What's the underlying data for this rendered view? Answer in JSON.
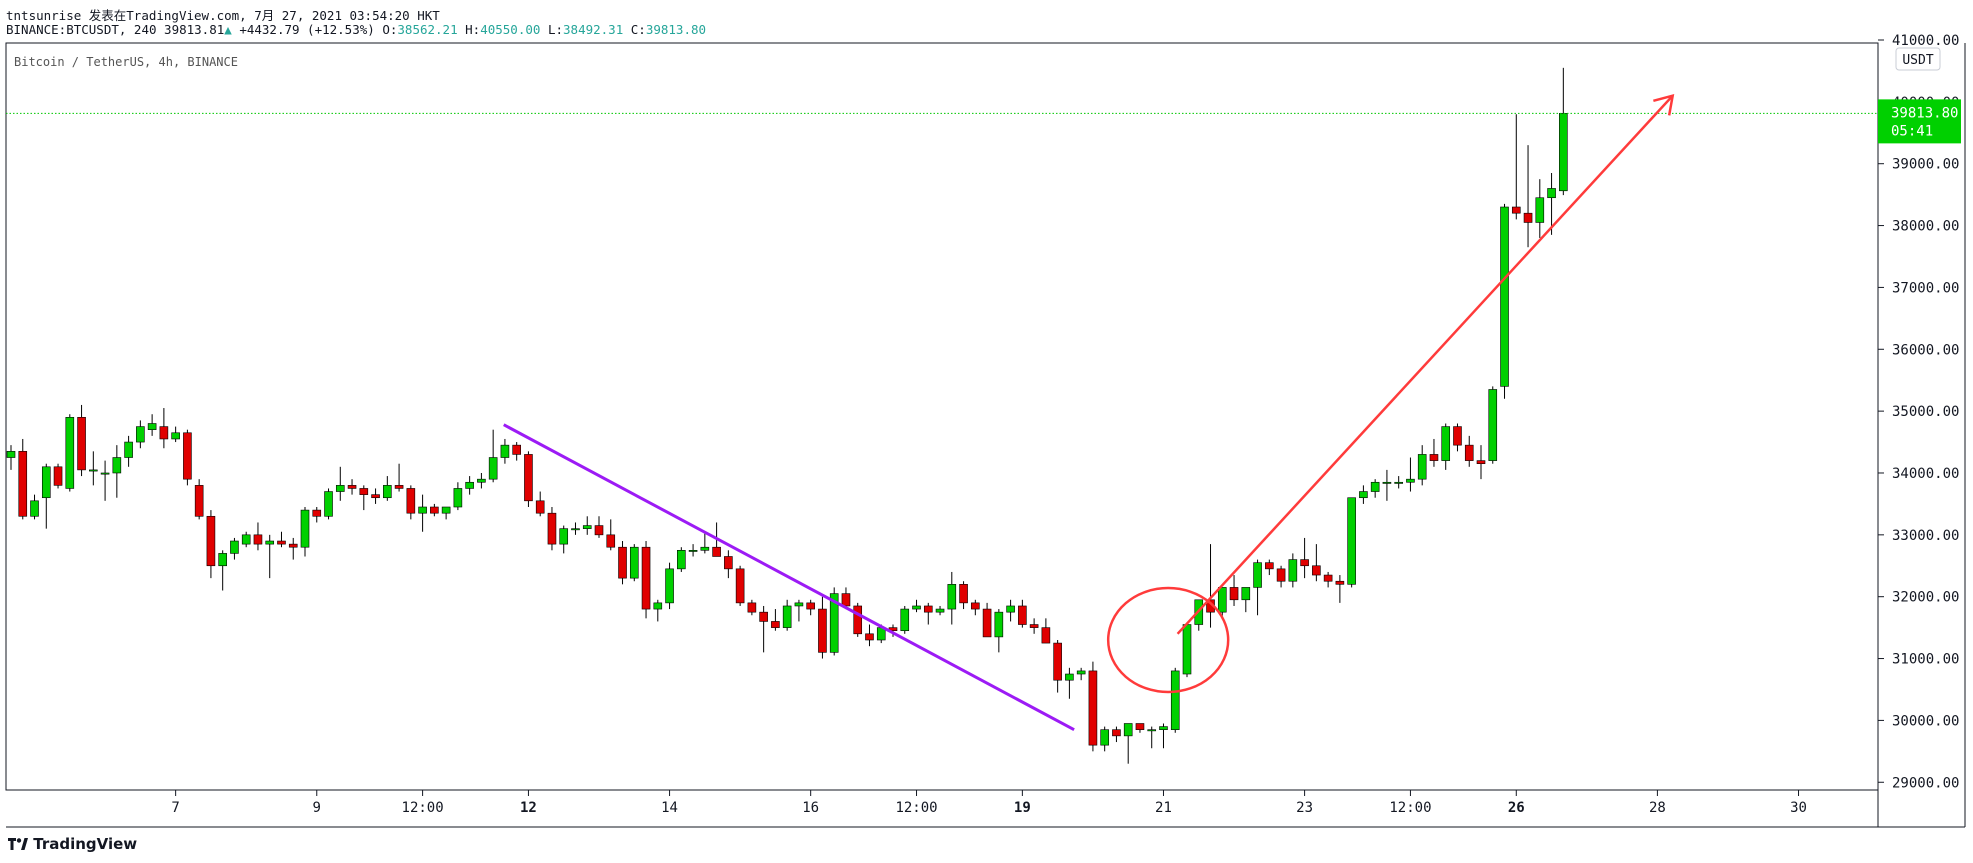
{
  "header": {
    "line1": "tntsunrise 发表在TradingView.com, 7月 27, 2021 03:54:20 HKT",
    "symbol": "BINANCE:BTCUSDT, 240",
    "last_price": "39813.81",
    "arrow": "▲",
    "change": "+4432.79 (+12.53%)",
    "o_label": "O:",
    "o_value": "38562.21",
    "h_label": "H:",
    "h_value": "40550.00",
    "l_label": "L:",
    "l_value": "38492.31",
    "c_label": "C:",
    "c_value": "39813.80"
  },
  "chart_title": "Bitcoin / TetherUS, 4h, BINANCE",
  "currency_badge": "USDT",
  "price_tag": {
    "price": "39813.80",
    "countdown": "05:41"
  },
  "footer": {
    "logo_icon": "tradingview-logo-icon",
    "brand": "TradingView"
  },
  "colors": {
    "up": "#00d000",
    "down": "#e00000",
    "trend_line": "#9c1bf5",
    "arrow": "#ff3b3b",
    "circle": "#ff3b3b",
    "last_price_line": "#00c800"
  },
  "chart_data": {
    "type": "candlestick",
    "timeframe": "4h",
    "ylim": [
      28600,
      41000
    ],
    "y_ticks": [
      "29000.00",
      "30000.00",
      "31000.00",
      "32000.00",
      "33000.00",
      "34000.00",
      "35000.00",
      "36000.00",
      "37000.00",
      "38000.00",
      "39000.00",
      "40000.00",
      "41000.00"
    ],
    "x_ticks": [
      {
        "label": "7",
        "bar": 14,
        "bold": false
      },
      {
        "label": "9",
        "bar": 26,
        "bold": false
      },
      {
        "label": "12:00",
        "bar": 35,
        "bold": false
      },
      {
        "label": "12",
        "bar": 44,
        "bold": true
      },
      {
        "label": "14",
        "bar": 56,
        "bold": false
      },
      {
        "label": "16",
        "bar": 68,
        "bold": false
      },
      {
        "label": "12:00",
        "bar": 77,
        "bold": false
      },
      {
        "label": "19",
        "bar": 86,
        "bold": true
      },
      {
        "label": "21",
        "bar": 98,
        "bold": false
      },
      {
        "label": "23",
        "bar": 110,
        "bold": false
      },
      {
        "label": "12:00",
        "bar": 119,
        "bold": false
      },
      {
        "label": "26",
        "bar": 128,
        "bold": true
      },
      {
        "label": "28",
        "bar": 140,
        "bold": false
      },
      {
        "label": "30",
        "bar": 152,
        "bold": false
      }
    ],
    "candles": [
      [
        34250,
        34450,
        34050,
        34350
      ],
      [
        34350,
        34550,
        33250,
        33300
      ],
      [
        33300,
        33650,
        33250,
        33550
      ],
      [
        33600,
        34150,
        33100,
        34100
      ],
      [
        34100,
        34150,
        33750,
        33800
      ],
      [
        33750,
        34950,
        33700,
        34900
      ],
      [
        34900,
        35100,
        33950,
        34050
      ],
      [
        34050,
        34350,
        33800,
        34050
      ],
      [
        34000,
        34200,
        33550,
        34000
      ],
      [
        34000,
        34450,
        33600,
        34250
      ],
      [
        34250,
        34600,
        34100,
        34500
      ],
      [
        34500,
        34850,
        34400,
        34750
      ],
      [
        34700,
        34950,
        34600,
        34800
      ],
      [
        34750,
        35050,
        34400,
        34550
      ],
      [
        34550,
        34750,
        34500,
        34650
      ],
      [
        34650,
        34700,
        33800,
        33900
      ],
      [
        33800,
        33900,
        33250,
        33300
      ],
      [
        33300,
        33400,
        32300,
        32500
      ],
      [
        32500,
        32750,
        32100,
        32700
      ],
      [
        32700,
        32950,
        32600,
        32900
      ],
      [
        32850,
        33050,
        32800,
        33000
      ],
      [
        33000,
        33200,
        32750,
        32850
      ],
      [
        32850,
        33000,
        32300,
        32900
      ],
      [
        32900,
        33050,
        32800,
        32850
      ],
      [
        32850,
        32950,
        32600,
        32800
      ],
      [
        32800,
        33450,
        32650,
        33400
      ],
      [
        33400,
        33450,
        33200,
        33300
      ],
      [
        33300,
        33750,
        33250,
        33700
      ],
      [
        33700,
        34100,
        33550,
        33800
      ],
      [
        33800,
        33900,
        33650,
        33750
      ],
      [
        33750,
        33800,
        33400,
        33650
      ],
      [
        33650,
        33750,
        33500,
        33600
      ],
      [
        33600,
        33950,
        33550,
        33800
      ],
      [
        33800,
        34150,
        33700,
        33750
      ],
      [
        33750,
        33800,
        33250,
        33350
      ],
      [
        33350,
        33650,
        33050,
        33450
      ],
      [
        33450,
        33500,
        33300,
        33350
      ],
      [
        33350,
        33450,
        33250,
        33450
      ],
      [
        33450,
        33850,
        33400,
        33750
      ],
      [
        33750,
        33950,
        33650,
        33850
      ],
      [
        33850,
        34000,
        33750,
        33900
      ],
      [
        33900,
        34700,
        33850,
        34250
      ],
      [
        34250,
        34550,
        34150,
        34450
      ],
      [
        34450,
        34500,
        34200,
        34300
      ],
      [
        34300,
        34350,
        33450,
        33550
      ],
      [
        33550,
        33700,
        33300,
        33350
      ],
      [
        33350,
        33450,
        32750,
        32850
      ],
      [
        32850,
        33150,
        32700,
        33100
      ],
      [
        33100,
        33200,
        33000,
        33100
      ],
      [
        33100,
        33300,
        33000,
        33150
      ],
      [
        33150,
        33300,
        32950,
        33000
      ],
      [
        33000,
        33250,
        32750,
        32800
      ],
      [
        32800,
        32900,
        32200,
        32300
      ],
      [
        32300,
        32850,
        32250,
        32800
      ],
      [
        32800,
        32900,
        31650,
        31800
      ],
      [
        31800,
        31950,
        31600,
        31900
      ],
      [
        31900,
        32550,
        31800,
        32450
      ],
      [
        32450,
        32800,
        32400,
        32750
      ],
      [
        32750,
        32850,
        32650,
        32750
      ],
      [
        32750,
        33050,
        32700,
        32800
      ],
      [
        32800,
        33200,
        32650,
        32650
      ],
      [
        32650,
        32750,
        32300,
        32450
      ],
      [
        32450,
        32500,
        31850,
        31900
      ],
      [
        31900,
        31950,
        31700,
        31750
      ],
      [
        31750,
        31850,
        31100,
        31600
      ],
      [
        31600,
        31800,
        31450,
        31500
      ],
      [
        31500,
        31950,
        31450,
        31850
      ],
      [
        31850,
        31950,
        31600,
        31900
      ],
      [
        31900,
        31950,
        31700,
        31800
      ],
      [
        31800,
        32000,
        31000,
        31100
      ],
      [
        31100,
        32150,
        31050,
        32050
      ],
      [
        32050,
        32150,
        31800,
        31850
      ],
      [
        31850,
        31900,
        31350,
        31400
      ],
      [
        31400,
        31550,
        31200,
        31300
      ],
      [
        31300,
        31550,
        31250,
        31500
      ],
      [
        31500,
        31550,
        31350,
        31450
      ],
      [
        31450,
        31850,
        31400,
        31800
      ],
      [
        31800,
        31950,
        31750,
        31850
      ],
      [
        31850,
        31900,
        31550,
        31750
      ],
      [
        31750,
        31850,
        31700,
        31800
      ],
      [
        31800,
        32400,
        31550,
        32200
      ],
      [
        32200,
        32250,
        31800,
        31900
      ],
      [
        31900,
        31950,
        31700,
        31800
      ],
      [
        31800,
        31900,
        31400,
        31350
      ],
      [
        31350,
        31800,
        31100,
        31750
      ],
      [
        31750,
        31950,
        31600,
        31850
      ],
      [
        31850,
        31950,
        31500,
        31550
      ],
      [
        31550,
        31650,
        31400,
        31500
      ],
      [
        31500,
        31650,
        31250,
        31250
      ],
      [
        31250,
        31300,
        30450,
        30650
      ],
      [
        30650,
        30850,
        30350,
        30750
      ],
      [
        30750,
        30850,
        30650,
        30800
      ],
      [
        30800,
        30950,
        29500,
        29600
      ],
      [
        29600,
        29900,
        29500,
        29850
      ],
      [
        29850,
        29900,
        29650,
        29750
      ],
      [
        29750,
        29950,
        29300,
        29950
      ],
      [
        29950,
        29950,
        29800,
        29850
      ],
      [
        29850,
        29900,
        29550,
        29850
      ],
      [
        29850,
        29950,
        29550,
        29900
      ],
      [
        29850,
        30850,
        29800,
        30800
      ],
      [
        30750,
        31550,
        30700,
        31550
      ],
      [
        31550,
        31950,
        31450,
        31950
      ],
      [
        31950,
        32850,
        31500,
        31750
      ],
      [
        31750,
        32050,
        31650,
        32150
      ],
      [
        32150,
        32350,
        31850,
        31950
      ],
      [
        31950,
        32050,
        31750,
        32150
      ],
      [
        32150,
        32600,
        31700,
        32550
      ],
      [
        32550,
        32600,
        32350,
        32450
      ],
      [
        32450,
        32500,
        32150,
        32250
      ],
      [
        32250,
        32700,
        32150,
        32600
      ],
      [
        32600,
        32950,
        32300,
        32500
      ],
      [
        32500,
        32850,
        32250,
        32350
      ],
      [
        32350,
        32400,
        32150,
        32250
      ],
      [
        32250,
        32350,
        31900,
        32200
      ],
      [
        32200,
        33600,
        32150,
        33600
      ],
      [
        33600,
        33800,
        33500,
        33700
      ],
      [
        33700,
        33900,
        33600,
        33850
      ],
      [
        33850,
        34050,
        33550,
        33850
      ],
      [
        33850,
        33950,
        33750,
        33850
      ],
      [
        33850,
        34250,
        33700,
        33900
      ],
      [
        33900,
        34450,
        33800,
        34300
      ],
      [
        34300,
        34550,
        34100,
        34200
      ],
      [
        34200,
        34800,
        34050,
        34750
      ],
      [
        34750,
        34800,
        34350,
        34450
      ],
      [
        34450,
        34600,
        34100,
        34200
      ],
      [
        34200,
        34450,
        33900,
        34150
      ],
      [
        34200,
        35400,
        34150,
        35350
      ],
      [
        35400,
        38350,
        35200,
        38300
      ],
      [
        38300,
        39800,
        38100,
        38200
      ],
      [
        38200,
        39300,
        37650,
        38050
      ],
      [
        38050,
        38750,
        37800,
        38450
      ],
      [
        38450,
        38850,
        37850,
        38600
      ],
      [
        38562.21,
        40550,
        38492.31,
        39813.8
      ]
    ]
  }
}
